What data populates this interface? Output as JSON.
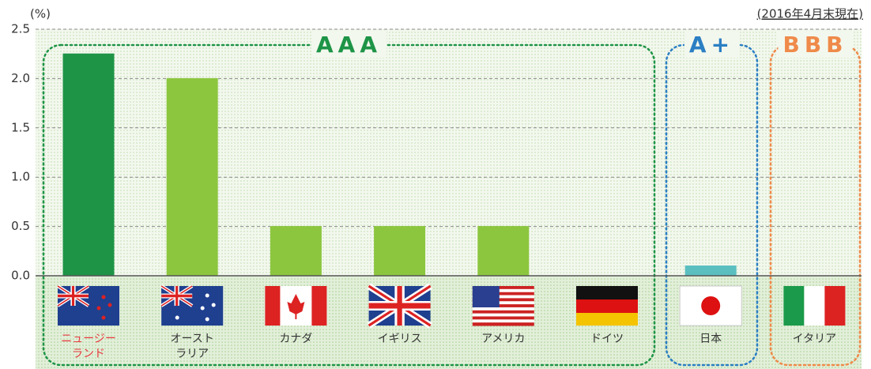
{
  "chart_data": {
    "type": "bar",
    "y_unit": "(%)",
    "annotation": "(2016年4月末現在)",
    "categories": [
      "ニュージー\nランド",
      "オースト\nラリア",
      "カナダ",
      "イギリス",
      "アメリカ",
      "ドイツ",
      "日本",
      "イタリア"
    ],
    "values": [
      2.25,
      2.0,
      0.5,
      0.5,
      0.5,
      0,
      0.1,
      0
    ],
    "colors": [
      "#1e9447",
      "#8cc63f",
      "#8cc63f",
      "#8cc63f",
      "#8cc63f",
      "#8cc63f",
      "#5bbfc0",
      "#8cc63f"
    ],
    "groups": [
      {
        "label": "AAA",
        "color": "#1e9447"
      },
      {
        "label": "A+",
        "color": "#2b7fc3"
      },
      {
        "label": "BBB",
        "color": "#ef8a4a"
      }
    ],
    "ylim": [
      0,
      2.5
    ],
    "yticks": [
      {
        "value": 0,
        "label": "0.0"
      },
      0.5,
      {
        "value": 1,
        "label": "1.0"
      },
      1.5,
      {
        "value": 2,
        "label": "2.0"
      },
      2.5
    ],
    "grid": true
  }
}
